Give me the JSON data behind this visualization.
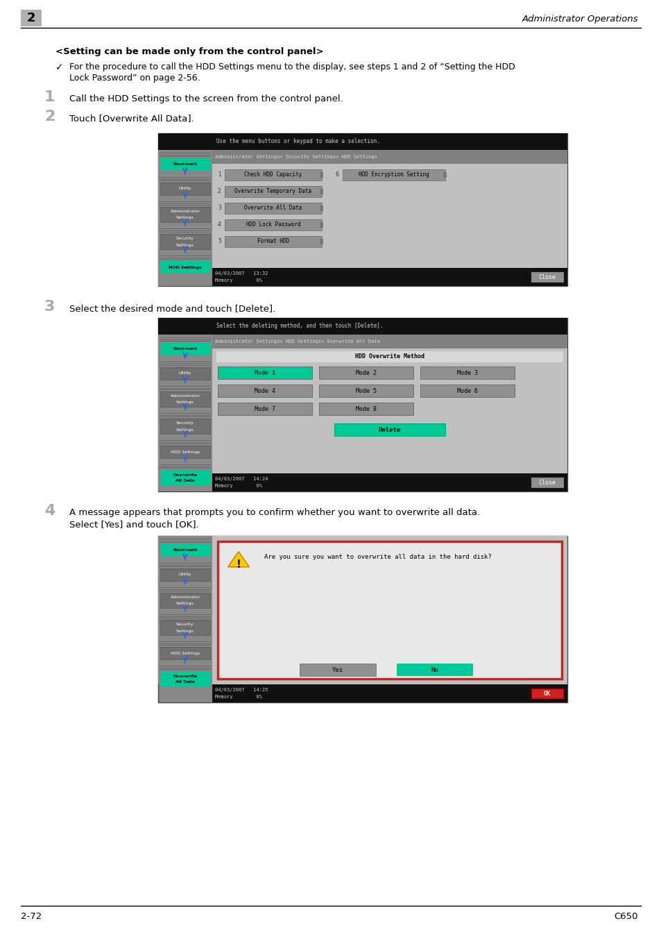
{
  "page_number": "2",
  "page_footer_left": "2-72",
  "page_footer_right": "C650",
  "header_right": "Administrator Operations",
  "bg_color": "#ffffff",
  "title": "<Setting can be made only from the control panel>",
  "note_text_1": "For the procedure to call the HDD Settings menu to the display, see steps 1 and 2 of “Setting the HDD",
  "note_text_2": "Lock Password” on page 2-56.",
  "step1_text": "Call the HDD Settings to the screen from the control panel.",
  "step2_text": "Touch [Overwrite All Data].",
  "step3_text": "Select the desired mode and touch [Delete].",
  "step4_text_1": "A message appears that prompts you to confirm whether you want to overwrite all data.",
  "step4_text_2": "Select [Yes] and touch [OK].",
  "screen_green": "#00c896",
  "screen_black": "#111111",
  "screen_sidebar": "#888888",
  "screen_sidebar_dark": "#6a6a6a",
  "screen_content_bg": "#c0c0c0",
  "screen_pathbar": "#808080",
  "screen_btn_gray": "#909090",
  "screen_btn_dark": "#707070",
  "screen_bottom": "#111111"
}
